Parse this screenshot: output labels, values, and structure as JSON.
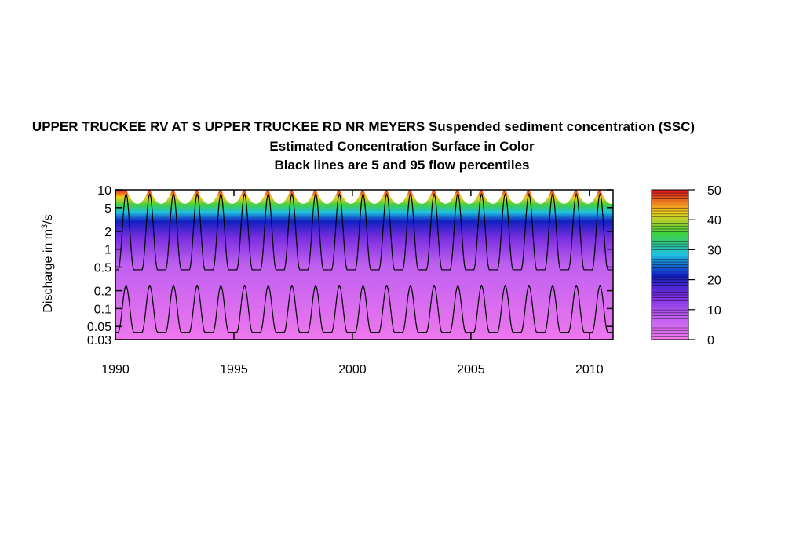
{
  "chart_data": {
    "type": "heatmap",
    "title_lines": [
      "UPPER TRUCKEE RV AT S UPPER TRUCKEE RD NR MEYERS    Suspended sediment concentration (SSC)",
      "Estimated Concentration Surface in Color",
      "Black lines are 5 and 95 flow percentiles"
    ],
    "xlabel": "",
    "ylabel": "Discharge in m",
    "ylabel_sup": "3",
    "ylabel_suffix": "/s",
    "x_ticks": [
      1990,
      1995,
      2000,
      2005,
      2010
    ],
    "x_range": [
      1990,
      2011
    ],
    "y_scale": "log",
    "y_ticks": [
      0.03,
      0.05,
      0.1,
      0.2,
      0.5,
      1,
      2,
      5,
      10
    ],
    "y_tick_labels": [
      "0.03",
      "0.05",
      "0.1",
      "0.2",
      "0.5",
      "1",
      "2",
      "5",
      "10"
    ],
    "y_range": [
      0.03,
      10
    ],
    "colorbar": {
      "ticks": [
        0,
        10,
        20,
        30,
        40,
        50
      ],
      "range": [
        0,
        50
      ]
    },
    "flow_percentiles": {
      "p95_low": 0.45,
      "p95_high": 8.5,
      "p5_low": 0.04,
      "p5_high": 0.24
    },
    "colors": {
      "low": "#ee77ee",
      "mid": "#1020c0",
      "high": "#e02020"
    }
  }
}
